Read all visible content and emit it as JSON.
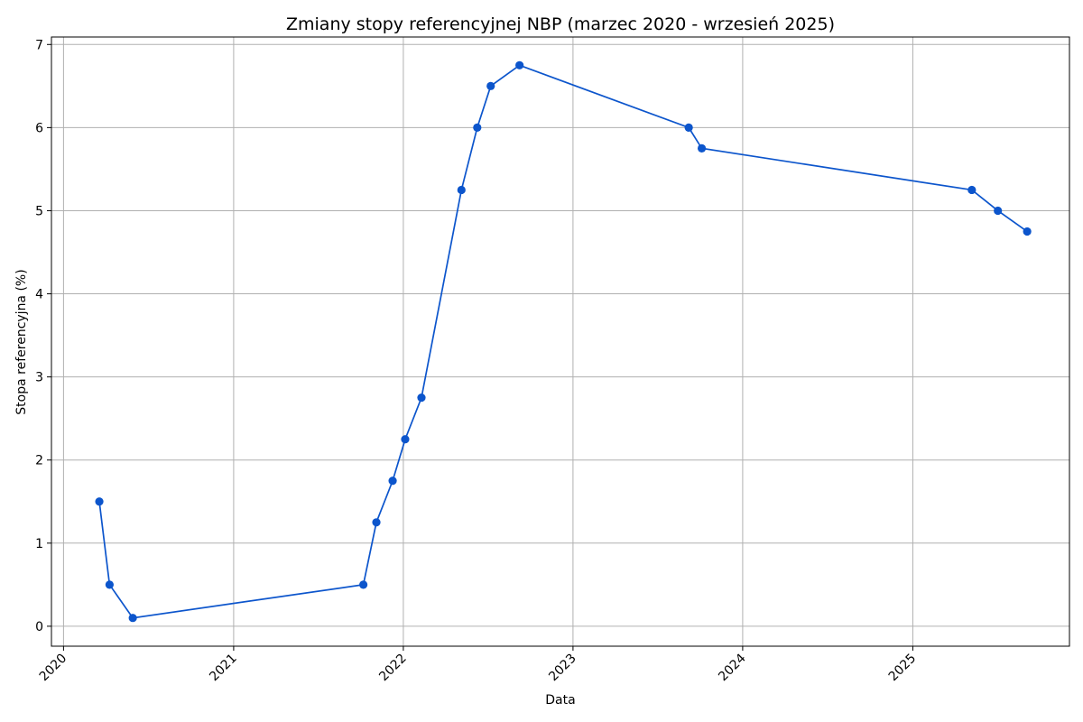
{
  "chart_data": {
    "type": "line",
    "title": "Zmiany stopy referencyjnej NBP (marzec 2020 - wrzesień 2025)",
    "xlabel": "Data",
    "ylabel": "Stopa referencyjna (%)",
    "xlim": [
      "2019-12-06",
      "2025-12-04"
    ],
    "ylim": [
      -0.24,
      7.09
    ],
    "x_ticks": [
      "2020",
      "2021",
      "2022",
      "2023",
      "2024",
      "2025"
    ],
    "y_ticks": [
      0,
      1,
      2,
      3,
      4,
      5,
      6,
      7
    ],
    "grid": true,
    "series": [
      {
        "color": "#0c55cc",
        "x": [
          "2020-03-18",
          "2020-04-09",
          "2020-05-29",
          "2021-10-07",
          "2021-11-04",
          "2021-12-09",
          "2022-01-05",
          "2022-02-09",
          "2022-05-06",
          "2022-06-09",
          "2022-07-08",
          "2022-09-08",
          "2023-09-07",
          "2023-10-05",
          "2025-05-08",
          "2025-07-03",
          "2025-09-04"
        ],
        "values": [
          1.5,
          0.5,
          0.1,
          0.5,
          1.25,
          1.75,
          2.25,
          2.75,
          5.25,
          6.0,
          6.5,
          6.75,
          6.0,
          5.75,
          5.25,
          5.0,
          4.75
        ]
      }
    ]
  }
}
